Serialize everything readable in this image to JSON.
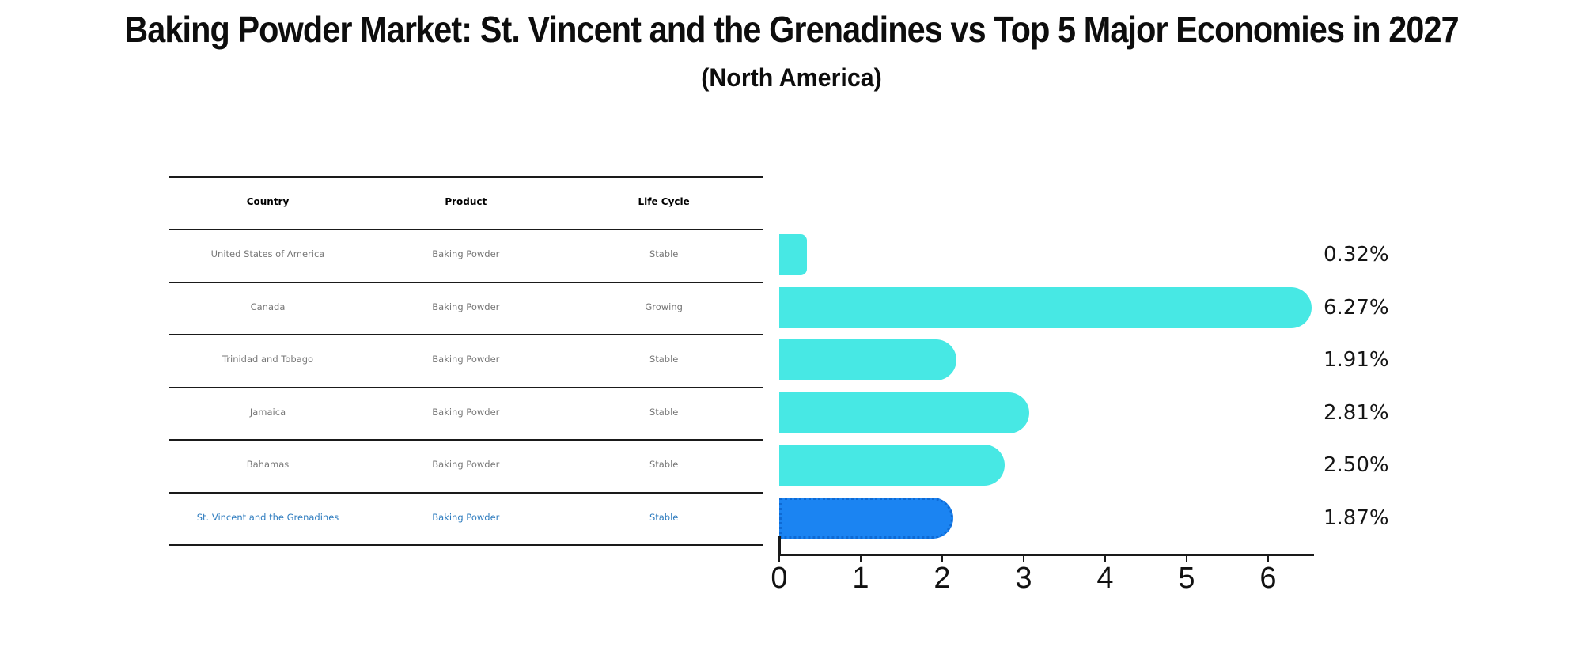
{
  "title": "Baking Powder Market: St. Vincent and the Grenadines vs Top 5 Major Economies in 2027",
  "subtitle": "(North America)",
  "table": {
    "headers": [
      "Country",
      "Product",
      "Life Cycle"
    ],
    "rows": [
      {
        "country": "United States of America",
        "product": "Baking Powder",
        "life_cycle": "Stable",
        "highlight": false
      },
      {
        "country": "Canada",
        "product": "Baking Powder",
        "life_cycle": "Growing",
        "highlight": false
      },
      {
        "country": "Trinidad and Tobago",
        "product": "Baking Powder",
        "life_cycle": "Stable",
        "highlight": false
      },
      {
        "country": "Jamaica",
        "product": "Baking Powder",
        "life_cycle": "Stable",
        "highlight": false
      },
      {
        "country": "Bahamas",
        "product": "Baking Powder",
        "life_cycle": "Stable",
        "highlight": false
      },
      {
        "country": "St. Vincent and the Grenadines",
        "product": "Baking Powder",
        "life_cycle": "Stable",
        "highlight": true
      }
    ]
  },
  "chart_data": {
    "type": "bar",
    "orientation": "horizontal",
    "title": "Baking Powder Market: St. Vincent and the Grenadines vs Top 5 Major Economies in 2027",
    "subtitle": "(North America)",
    "categories": [
      "United States of America",
      "Canada",
      "Trinidad and Tobago",
      "Jamaica",
      "Bahamas",
      "St. Vincent and the Grenadines"
    ],
    "values": [
      0.32,
      6.27,
      1.91,
      2.81,
      2.5,
      1.87
    ],
    "value_labels": [
      "0.32%",
      "6.27%",
      "1.91%",
      "2.81%",
      "2.50%",
      "1.87%"
    ],
    "xlabel": "",
    "ylabel": "",
    "xlim": [
      0,
      6.56
    ],
    "xticks": [
      0,
      1,
      2,
      3,
      4,
      5,
      6
    ],
    "grid": false,
    "legend": null,
    "bar_color": "#47e8e4",
    "highlight_bar_color": "#1b84f2",
    "highlight_text_color": "#2e7cbf",
    "highlight_index": 5
  }
}
